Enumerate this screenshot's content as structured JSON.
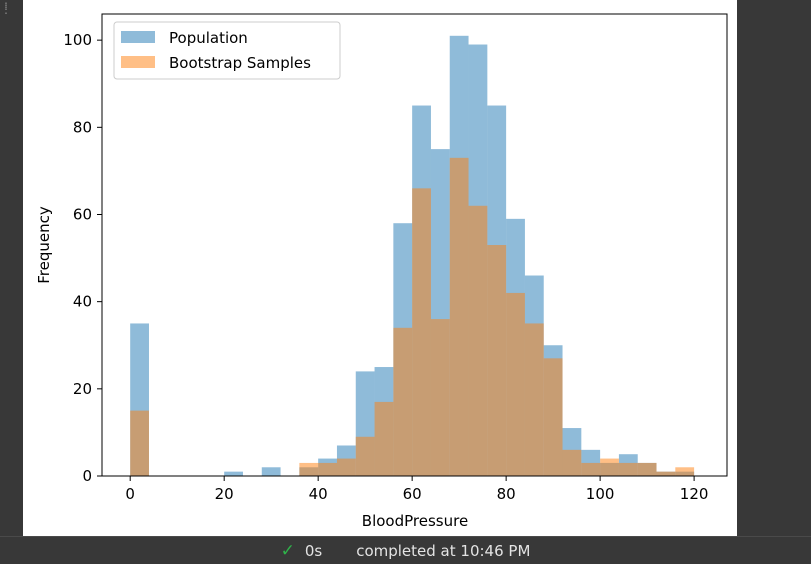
{
  "chart_data": {
    "type": "bar",
    "subtype": "overlaid-histogram",
    "xlabel": "BloodPressure",
    "ylabel": "Frequency",
    "xlim": [
      -6,
      127
    ],
    "ylim": [
      0,
      106
    ],
    "xticks": [
      0,
      20,
      40,
      60,
      80,
      100,
      120
    ],
    "yticks": [
      0,
      20,
      40,
      60,
      80,
      100
    ],
    "grid": false,
    "legend_position": "top-left",
    "series": [
      {
        "name": "Population",
        "color": "#1f77b4",
        "alpha": 0.5,
        "bins": [
          {
            "x0": 0,
            "x1": 4,
            "value": 35
          },
          {
            "x0": 20,
            "x1": 24,
            "value": 1
          },
          {
            "x0": 28,
            "x1": 32,
            "value": 2
          },
          {
            "x0": 36,
            "x1": 40,
            "value": 2
          },
          {
            "x0": 40,
            "x1": 44,
            "value": 4
          },
          {
            "x0": 44,
            "x1": 48,
            "value": 7
          },
          {
            "x0": 48,
            "x1": 52,
            "value": 24
          },
          {
            "x0": 52,
            "x1": 56,
            "value": 25
          },
          {
            "x0": 56,
            "x1": 60,
            "value": 58
          },
          {
            "x0": 60,
            "x1": 64,
            "value": 85
          },
          {
            "x0": 64,
            "x1": 68,
            "value": 75
          },
          {
            "x0": 68,
            "x1": 72,
            "value": 101
          },
          {
            "x0": 72,
            "x1": 76,
            "value": 99
          },
          {
            "x0": 76,
            "x1": 80,
            "value": 85
          },
          {
            "x0": 80,
            "x1": 84,
            "value": 59
          },
          {
            "x0": 84,
            "x1": 88,
            "value": 46
          },
          {
            "x0": 88,
            "x1": 92,
            "value": 30
          },
          {
            "x0": 92,
            "x1": 96,
            "value": 11
          },
          {
            "x0": 96,
            "x1": 100,
            "value": 6
          },
          {
            "x0": 100,
            "x1": 104,
            "value": 3
          },
          {
            "x0": 104,
            "x1": 108,
            "value": 5
          },
          {
            "x0": 108,
            "x1": 112,
            "value": 3
          },
          {
            "x0": 112,
            "x1": 116,
            "value": 1
          },
          {
            "x0": 116,
            "x1": 120,
            "value": 1
          }
        ]
      },
      {
        "name": "Bootstrap Samples",
        "color": "#ff7f0e",
        "alpha": 0.5,
        "bins": [
          {
            "x0": 0,
            "x1": 4,
            "value": 15
          },
          {
            "x0": 36,
            "x1": 40,
            "value": 3
          },
          {
            "x0": 40,
            "x1": 44,
            "value": 3
          },
          {
            "x0": 44,
            "x1": 48,
            "value": 4
          },
          {
            "x0": 48,
            "x1": 52,
            "value": 9
          },
          {
            "x0": 52,
            "x1": 56,
            "value": 17
          },
          {
            "x0": 56,
            "x1": 60,
            "value": 34
          },
          {
            "x0": 60,
            "x1": 64,
            "value": 66
          },
          {
            "x0": 64,
            "x1": 68,
            "value": 36
          },
          {
            "x0": 68,
            "x1": 72,
            "value": 73
          },
          {
            "x0": 72,
            "x1": 76,
            "value": 62
          },
          {
            "x0": 76,
            "x1": 80,
            "value": 53
          },
          {
            "x0": 80,
            "x1": 84,
            "value": 42
          },
          {
            "x0": 84,
            "x1": 88,
            "value": 35
          },
          {
            "x0": 88,
            "x1": 92,
            "value": 27
          },
          {
            "x0": 92,
            "x1": 96,
            "value": 6
          },
          {
            "x0": 96,
            "x1": 100,
            "value": 3
          },
          {
            "x0": 100,
            "x1": 104,
            "value": 4
          },
          {
            "x0": 104,
            "x1": 108,
            "value": 3
          },
          {
            "x0": 108,
            "x1": 112,
            "value": 3
          },
          {
            "x0": 112,
            "x1": 116,
            "value": 1
          },
          {
            "x0": 116,
            "x1": 120,
            "value": 2
          }
        ]
      }
    ]
  },
  "status": {
    "icon": "check-icon",
    "duration": "0s",
    "completed_text": "completed at 10:46 PM",
    "check_color": "#2fb34a"
  }
}
